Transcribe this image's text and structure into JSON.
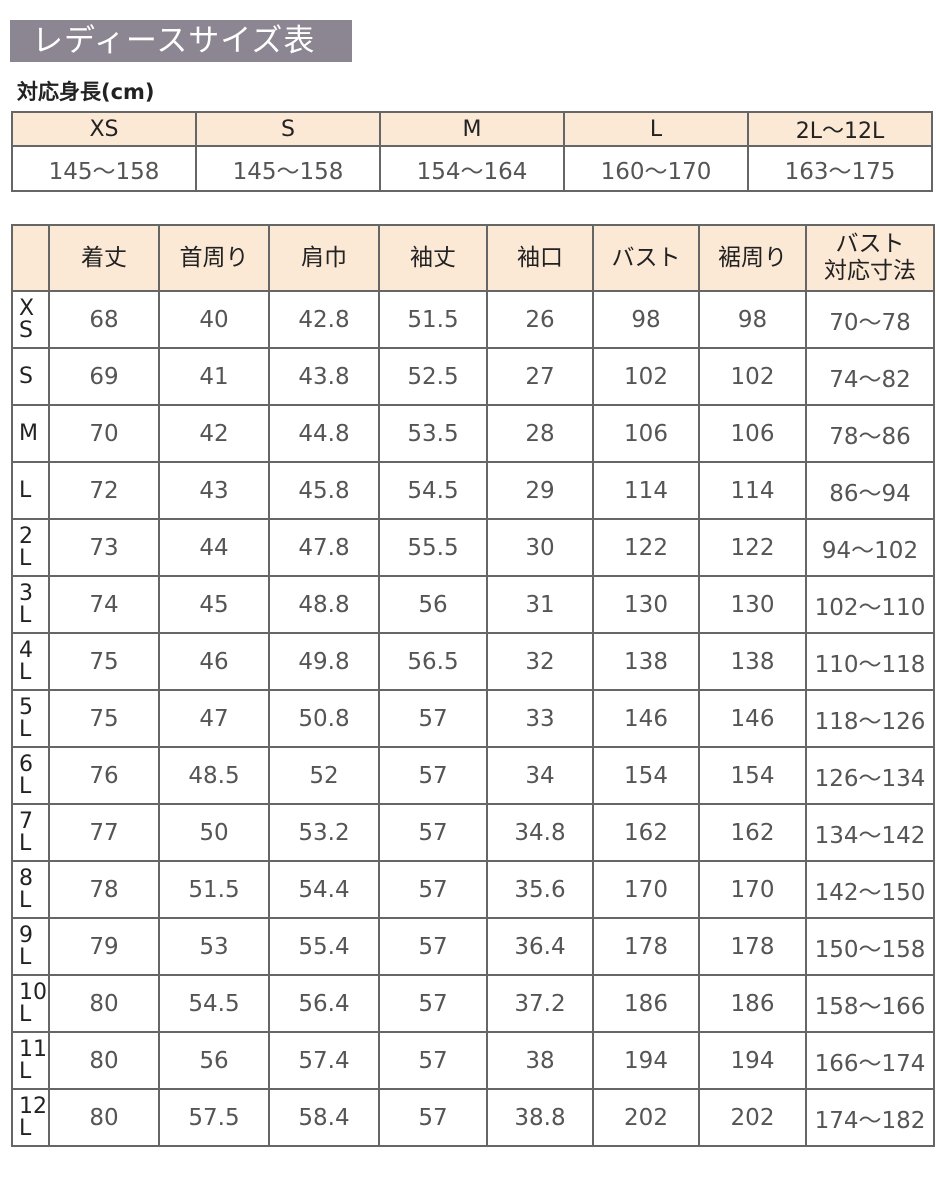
{
  "title": "レディースサイズ表",
  "height_table": {
    "caption": "対応身長(cm)",
    "sizes": [
      "XS",
      "S",
      "M",
      "L",
      "2L〜12L"
    ],
    "heights": [
      "145〜158",
      "145〜158",
      "154〜164",
      "160〜170",
      "163〜175"
    ]
  },
  "size_table": {
    "headers": [
      "着丈",
      "首周り",
      "肩巾",
      "袖丈",
      "袖口",
      "バスト",
      "裾周り",
      "バスト\n対応寸法"
    ],
    "rows": [
      {
        "label": [
          "X",
          "S"
        ],
        "values": [
          "68",
          "40",
          "42.8",
          "51.5",
          "26",
          "98",
          "98",
          "70〜78"
        ]
      },
      {
        "label": [
          "S"
        ],
        "values": [
          "69",
          "41",
          "43.8",
          "52.5",
          "27",
          "102",
          "102",
          "74〜82"
        ]
      },
      {
        "label": [
          "M"
        ],
        "values": [
          "70",
          "42",
          "44.8",
          "53.5",
          "28",
          "106",
          "106",
          "78〜86"
        ]
      },
      {
        "label": [
          "L"
        ],
        "values": [
          "72",
          "43",
          "45.8",
          "54.5",
          "29",
          "114",
          "114",
          "86〜94"
        ]
      },
      {
        "label": [
          "2",
          "L"
        ],
        "values": [
          "73",
          "44",
          "47.8",
          "55.5",
          "30",
          "122",
          "122",
          "94〜102"
        ]
      },
      {
        "label": [
          "3",
          "L"
        ],
        "values": [
          "74",
          "45",
          "48.8",
          "56",
          "31",
          "130",
          "130",
          "102〜110"
        ]
      },
      {
        "label": [
          "4",
          "L"
        ],
        "values": [
          "75",
          "46",
          "49.8",
          "56.5",
          "32",
          "138",
          "138",
          "110〜118"
        ]
      },
      {
        "label": [
          "5",
          "L"
        ],
        "values": [
          "75",
          "47",
          "50.8",
          "57",
          "33",
          "146",
          "146",
          "118〜126"
        ]
      },
      {
        "label": [
          "6",
          "L"
        ],
        "values": [
          "76",
          "48.5",
          "52",
          "57",
          "34",
          "154",
          "154",
          "126〜134"
        ]
      },
      {
        "label": [
          "7",
          "L"
        ],
        "values": [
          "77",
          "50",
          "53.2",
          "57",
          "34.8",
          "162",
          "162",
          "134〜142"
        ]
      },
      {
        "label": [
          "8",
          "L"
        ],
        "values": [
          "78",
          "51.5",
          "54.4",
          "57",
          "35.6",
          "170",
          "170",
          "142〜150"
        ]
      },
      {
        "label": [
          "9",
          "L"
        ],
        "values": [
          "79",
          "53",
          "55.4",
          "57",
          "36.4",
          "178",
          "178",
          "150〜158"
        ]
      },
      {
        "label": [
          "10",
          "L"
        ],
        "values": [
          "80",
          "54.5",
          "56.4",
          "57",
          "37.2",
          "186",
          "186",
          "158〜166"
        ]
      },
      {
        "label": [
          "11",
          "L"
        ],
        "values": [
          "80",
          "56",
          "57.4",
          "57",
          "38",
          "194",
          "194",
          "166〜174"
        ]
      },
      {
        "label": [
          "12",
          "L"
        ],
        "values": [
          "80",
          "57.5",
          "58.4",
          "57",
          "38.8",
          "202",
          "202",
          "174〜182"
        ]
      }
    ]
  },
  "colors": {
    "title_bg": "#8b8691",
    "header_bg": "#fbe8d5",
    "border": "#666666"
  }
}
